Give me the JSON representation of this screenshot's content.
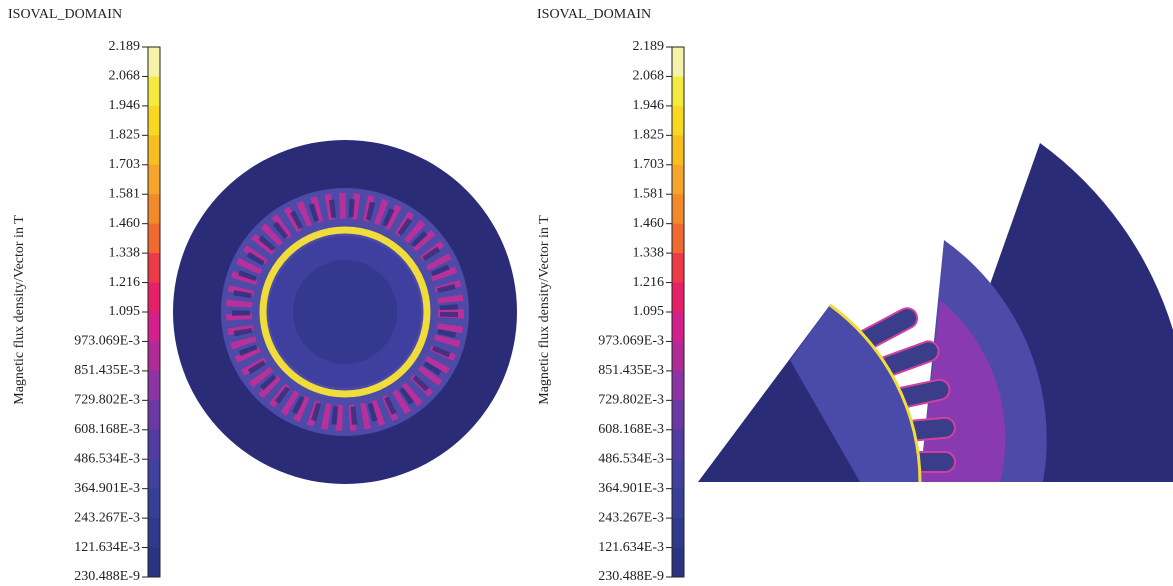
{
  "panels": [
    {
      "title": "ISOVAL_DOMAIN",
      "axis_label": "Magnetic flux density/Vector in T",
      "ticks": [
        "2.189",
        "2.068",
        "1.946",
        "1.825",
        "1.703",
        "1.581",
        "1.460",
        "1.338",
        "1.216",
        "1.095",
        "973.069E-3",
        "851.435E-3",
        "729.802E-3",
        "608.168E-3",
        "486.534E-3",
        "364.901E-3",
        "243.267E-3",
        "121.634E-3",
        "230.488E-9"
      ]
    },
    {
      "title": "ISOVAL_DOMAIN",
      "axis_label": "Magnetic flux density/Vector in T",
      "ticks": [
        "2.189",
        "2.068",
        "1.946",
        "1.825",
        "1.703",
        "1.581",
        "1.460",
        "1.338",
        "1.216",
        "1.095",
        "973.069E-3",
        "851.435E-3",
        "729.802E-3",
        "608.168E-3",
        "486.534E-3",
        "364.901E-3",
        "243.267E-3",
        "121.634E-3",
        "230.488E-9"
      ]
    }
  ]
}
